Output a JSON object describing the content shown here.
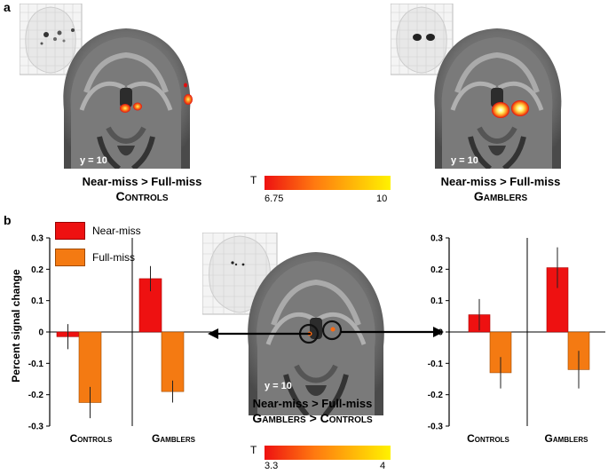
{
  "panel_a": {
    "letter": "a",
    "left_scan": {
      "coord": "y = 10",
      "caption_line1": "Near-miss > Full-miss",
      "caption_line2": "Controls"
    },
    "right_scan": {
      "coord": "y = 10",
      "caption_line1": "Near-miss > Full-miss",
      "caption_line2": "Gamblers"
    },
    "colorbar": {
      "symbol": "T",
      "min": "6.75",
      "max": "10"
    }
  },
  "panel_b": {
    "letter": "b",
    "center_scan": {
      "coord": "y = 10",
      "caption_line1": "Near-miss > Full-miss",
      "caption_line2": "Gamblers > Controls"
    },
    "colorbar": {
      "symbol": "T",
      "min": "3.3",
      "max": "4"
    },
    "ylabel": "Percent signal change",
    "legend": [
      "Near-miss",
      "Full-miss"
    ]
  },
  "colors": {
    "near_miss": "#ee1111",
    "full_miss": "#f47a12",
    "colorbar_low": "#ee1111",
    "colorbar_high": "#fff200"
  },
  "chart_data": [
    {
      "type": "bar",
      "ylabel": "Percent signal change",
      "ylim": [
        -0.3,
        0.3
      ],
      "yticks": [
        "0.3",
        "0.2",
        "0.1",
        "0",
        "-0.1",
        "-0.2",
        "-0.3"
      ],
      "categories": [
        "Controls",
        "Gamblers"
      ],
      "series": [
        {
          "name": "Near-miss",
          "values": [
            -0.015,
            0.17
          ],
          "errors": [
            0.04,
            0.04
          ]
        },
        {
          "name": "Full-miss",
          "values": [
            -0.225,
            -0.19
          ],
          "errors": [
            0.05,
            0.035
          ]
        }
      ]
    },
    {
      "type": "bar",
      "ylim": [
        -0.3,
        0.3
      ],
      "yticks": [
        "0.3",
        "0.2",
        "0.1",
        "0",
        "-0.1",
        "-0.2",
        "-0.3"
      ],
      "categories": [
        "Controls",
        "Gamblers"
      ],
      "series": [
        {
          "name": "Near-miss",
          "values": [
            0.055,
            0.205
          ],
          "errors": [
            0.05,
            0.065
          ]
        },
        {
          "name": "Full-miss",
          "values": [
            -0.13,
            -0.12
          ],
          "errors": [
            0.05,
            0.06
          ]
        }
      ]
    }
  ]
}
